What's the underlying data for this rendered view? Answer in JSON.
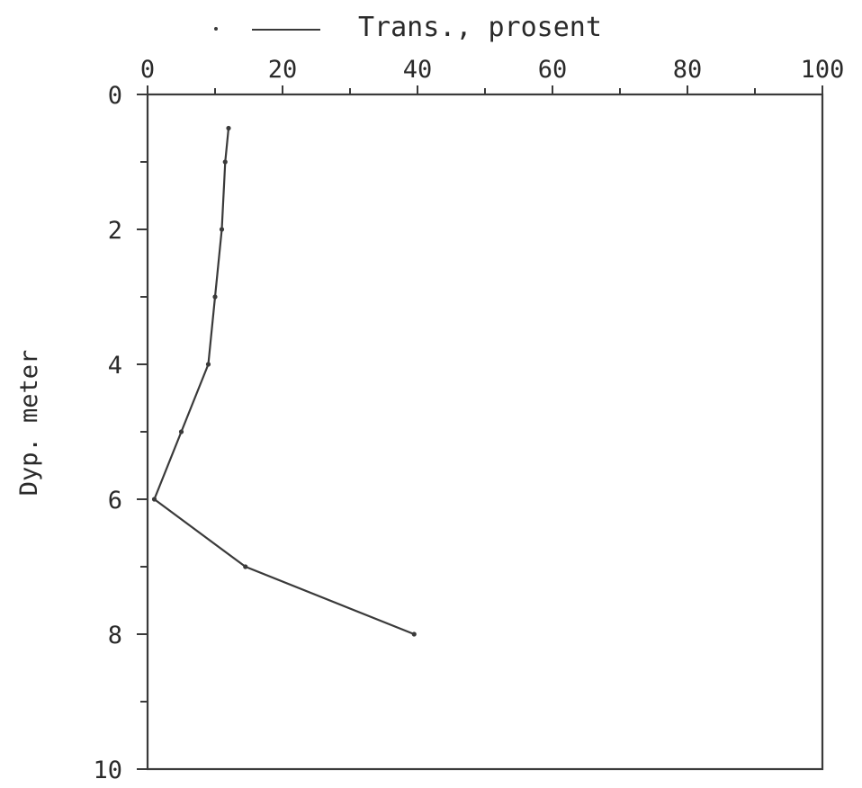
{
  "chart_data": {
    "type": "line",
    "title": "",
    "legend": {
      "label": "Trans., prosent",
      "position": "top"
    },
    "xlabel": "",
    "ylabel": "Dyp. meter",
    "xlim": [
      0,
      100
    ],
    "ylim": [
      0,
      10
    ],
    "y_inverted": true,
    "x_axis_position": "top",
    "x_ticks": [
      0,
      20,
      40,
      60,
      80,
      100
    ],
    "x_tick_labels": [
      "0",
      "20",
      "40",
      "60",
      "80",
      "100"
    ],
    "y_ticks": [
      0,
      2,
      4,
      6,
      8,
      10
    ],
    "y_tick_labels": [
      "0",
      "2",
      "4",
      "6",
      "8",
      "10"
    ],
    "grid": false,
    "series": [
      {
        "name": "Trans., prosent",
        "color": "#3a3a3a",
        "points": [
          {
            "x": 12,
            "y": 0.5
          },
          {
            "x": 11.5,
            "y": 1
          },
          {
            "x": 11,
            "y": 2
          },
          {
            "x": 10,
            "y": 3
          },
          {
            "x": 9,
            "y": 4
          },
          {
            "x": 5,
            "y": 5
          },
          {
            "x": 1,
            "y": 6
          },
          {
            "x": 14.5,
            "y": 7
          },
          {
            "x": 39.5,
            "y": 8
          }
        ]
      }
    ]
  }
}
